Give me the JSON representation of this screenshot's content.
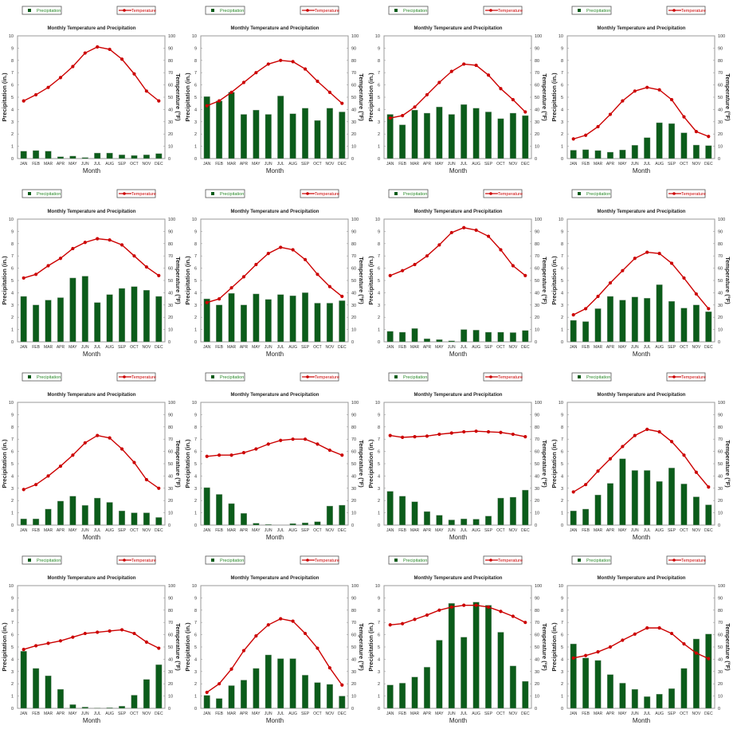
{
  "common": {
    "legend_precip": "Precipitation",
    "legend_temp": "Temperature",
    "xlabel": "Month",
    "ylabel": "Precipitation (in.)",
    "y2label": "Temperature (°F)",
    "categories": [
      "JAN",
      "FEB",
      "MAR",
      "APR",
      "MAY",
      "JUN",
      "JUL",
      "AUG",
      "SEP",
      "OCT",
      "NOV",
      "DEC"
    ],
    "ylim": [
      0,
      10
    ],
    "y2lim": [
      0,
      100
    ],
    "yticks": [
      "0",
      "1",
      "2",
      "3",
      "4",
      "5",
      "6",
      "7",
      "8",
      "9",
      "10"
    ],
    "y2ticks": [
      "0",
      "10",
      "20",
      "30",
      "40",
      "50",
      "60",
      "70",
      "80",
      "90",
      "100"
    ],
    "colors": {
      "precip": "#0b5c1a",
      "temp": "#cc0000"
    }
  },
  "chart_data": [
    {
      "type": "bar+line",
      "title": "Monthly Temperature and Precipitation",
      "series": [
        {
          "name": "Precipitation",
          "values": [
            0.6,
            0.65,
            0.6,
            0.15,
            0.2,
            0.08,
            0.45,
            0.45,
            0.3,
            0.25,
            0.3,
            0.4
          ]
        },
        {
          "name": "Temperature",
          "values": [
            47,
            52,
            58,
            66,
            75,
            86,
            91,
            89,
            81,
            69,
            55,
            47
          ]
        }
      ]
    },
    {
      "type": "bar+line",
      "title": "Monthly Temperature and Precipitation",
      "series": [
        {
          "name": "Precipitation",
          "values": [
            5.05,
            4.7,
            5.4,
            3.6,
            3.95,
            3.6,
            5.1,
            3.65,
            4.1,
            3.1,
            4.1,
            3.8
          ]
        },
        {
          "name": "Temperature",
          "values": [
            43,
            47,
            54,
            62,
            70,
            77,
            80,
            79,
            73,
            63,
            54,
            45
          ]
        }
      ]
    },
    {
      "type": "bar+line",
      "title": "Monthly Temperature and Precipitation",
      "series": [
        {
          "name": "Precipitation",
          "values": [
            3.6,
            2.75,
            3.95,
            3.7,
            4.2,
            3.6,
            4.4,
            4.1,
            3.8,
            3.25,
            3.7,
            3.5
          ]
        },
        {
          "name": "Temperature",
          "values": [
            33,
            35,
            42,
            52,
            62,
            71,
            77,
            76,
            68,
            57,
            48,
            38
          ]
        }
      ]
    },
    {
      "type": "bar+line",
      "title": "Monthly Temperature and Precipitation",
      "series": [
        {
          "name": "Precipitation",
          "values": [
            0.68,
            0.72,
            0.65,
            0.52,
            0.7,
            1.08,
            1.7,
            2.92,
            2.85,
            2.1,
            1.1,
            1.05
          ]
        },
        {
          "name": "Temperature",
          "values": [
            16,
            19,
            26,
            36,
            47,
            55,
            58,
            56,
            48,
            34,
            22,
            18
          ]
        }
      ]
    },
    {
      "type": "bar+line",
      "title": "Monthly Temperature and Precipitation",
      "series": [
        {
          "name": "Precipitation",
          "values": [
            3.7,
            3.0,
            3.4,
            3.6,
            5.2,
            5.35,
            3.2,
            3.85,
            4.35,
            4.5,
            4.2,
            3.7
          ]
        },
        {
          "name": "Temperature",
          "values": [
            52,
            55,
            62,
            68,
            76,
            81,
            84,
            83,
            79,
            70,
            61,
            54
          ]
        }
      ]
    },
    {
      "type": "bar+line",
      "title": "Monthly Temperature and Precipitation",
      "series": [
        {
          "name": "Precipitation",
          "values": [
            3.5,
            3.0,
            3.95,
            3.0,
            3.9,
            3.45,
            3.85,
            3.75,
            4.0,
            3.15,
            3.15,
            3.35
          ]
        },
        {
          "name": "Temperature",
          "values": [
            32,
            35,
            44,
            53,
            63,
            72,
            77,
            75,
            67,
            55,
            45,
            37
          ]
        }
      ]
    },
    {
      "type": "bar+line",
      "title": "Monthly Temperature and Precipitation",
      "series": [
        {
          "name": "Precipitation",
          "values": [
            0.85,
            0.78,
            1.08,
            0.25,
            0.18,
            0.08,
            1.0,
            0.95,
            0.78,
            0.78,
            0.75,
            0.92
          ]
        },
        {
          "name": "Temperature",
          "values": [
            54,
            58,
            63,
            70,
            79,
            89,
            93,
            91,
            86,
            75,
            62,
            54
          ]
        }
      ]
    },
    {
      "type": "bar+line",
      "title": "Monthly Temperature and Precipitation",
      "series": [
        {
          "name": "Precipitation",
          "values": [
            1.75,
            1.65,
            2.7,
            3.7,
            3.4,
            3.65,
            3.55,
            4.65,
            3.3,
            2.75,
            3.0,
            2.45
          ]
        },
        {
          "name": "Temperature",
          "values": [
            22,
            27,
            37,
            48,
            58,
            68,
            73,
            72,
            64,
            52,
            39,
            27
          ]
        }
      ]
    },
    {
      "type": "bar+line",
      "title": "Monthly Temperature and Precipitation",
      "series": [
        {
          "name": "Precipitation",
          "values": [
            0.5,
            0.5,
            1.3,
            1.95,
            2.35,
            1.6,
            2.2,
            1.85,
            1.15,
            1.0,
            1.0,
            0.62
          ]
        },
        {
          "name": "Temperature",
          "values": [
            29,
            33,
            40,
            48,
            57,
            67,
            73,
            71,
            62,
            51,
            37,
            30
          ]
        }
      ]
    },
    {
      "type": "bar+line",
      "title": "Monthly Temperature and Precipitation",
      "series": [
        {
          "name": "Precipitation",
          "values": [
            3.05,
            2.5,
            1.75,
            0.95,
            0.15,
            0.05,
            0,
            0.12,
            0.18,
            0.27,
            1.55,
            1.62
          ]
        },
        {
          "name": "Temperature",
          "values": [
            56,
            57,
            57,
            59,
            62,
            66,
            69,
            70,
            70,
            66,
            61,
            57
          ]
        }
      ]
    },
    {
      "type": "bar+line",
      "title": "Monthly Temperature and Precipitation",
      "series": [
        {
          "name": "Precipitation",
          "values": [
            2.75,
            2.35,
            1.9,
            1.1,
            0.8,
            0.42,
            0.5,
            0.48,
            0.73,
            2.2,
            2.27,
            2.85
          ]
        },
        {
          "name": "Temperature",
          "values": [
            73,
            71.5,
            72,
            72.5,
            74,
            75,
            76,
            76.5,
            76,
            75.5,
            74,
            72
          ]
        }
      ]
    },
    {
      "type": "bar+line",
      "title": "Monthly Temperature and Precipitation",
      "series": [
        {
          "name": "Precipitation",
          "values": [
            1.15,
            1.3,
            2.45,
            3.4,
            5.4,
            4.45,
            4.45,
            3.55,
            4.65,
            3.35,
            2.3,
            1.65
          ]
        },
        {
          "name": "Temperature",
          "values": [
            27,
            33,
            44,
            54,
            64,
            73,
            78,
            76,
            68,
            57,
            43,
            31
          ]
        }
      ]
    },
    {
      "type": "bar+line",
      "title": "Monthly Temperature and Precipitation",
      "series": [
        {
          "name": "Precipitation",
          "values": [
            4.65,
            3.25,
            2.65,
            1.55,
            0.3,
            0.1,
            0.03,
            0.05,
            0.17,
            1.07,
            2.35,
            3.55
          ]
        },
        {
          "name": "Temperature",
          "values": [
            48,
            51,
            53,
            55,
            58,
            61,
            62,
            63,
            64,
            61,
            54,
            49
          ]
        }
      ]
    },
    {
      "type": "bar+line",
      "title": "Monthly Temperature and Precipitation",
      "series": [
        {
          "name": "Precipitation",
          "values": [
            1.05,
            0.8,
            1.85,
            2.3,
            3.25,
            4.35,
            4.05,
            4.05,
            2.7,
            2.1,
            1.95,
            1.0
          ]
        },
        {
          "name": "Temperature",
          "values": [
            13,
            20,
            32,
            47,
            59,
            68,
            73,
            71,
            61,
            49,
            33,
            19
          ]
        }
      ]
    },
    {
      "type": "bar+line",
      "title": "Monthly Temperature and Precipitation",
      "series": [
        {
          "name": "Precipitation",
          "values": [
            1.9,
            2.05,
            2.55,
            3.35,
            5.55,
            8.55,
            5.8,
            8.65,
            8.4,
            6.2,
            3.45,
            2.2
          ]
        },
        {
          "name": "Temperature",
          "values": [
            68,
            69,
            72.5,
            76,
            80,
            82.5,
            84,
            84,
            82.5,
            79,
            75,
            70
          ]
        }
      ]
    },
    {
      "type": "bar+line",
      "title": "Monthly Temperature and Precipitation",
      "series": [
        {
          "name": "Precipitation",
          "values": [
            5.25,
            4.1,
            3.9,
            2.75,
            2.05,
            1.55,
            0.95,
            1.15,
            1.6,
            3.25,
            5.65,
            6.05
          ]
        },
        {
          "name": "Temperature",
          "values": [
            41,
            43,
            46,
            50,
            55.5,
            60.5,
            65.5,
            65.5,
            61,
            52.5,
            45,
            40.5
          ]
        }
      ]
    }
  ]
}
